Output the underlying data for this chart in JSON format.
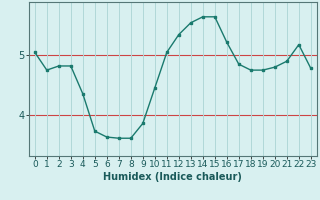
{
  "xlabel": "Humidex (Indice chaleur)",
  "ylabel": "",
  "x": [
    0,
    1,
    2,
    3,
    4,
    5,
    6,
    7,
    8,
    9,
    10,
    11,
    12,
    13,
    14,
    15,
    16,
    17,
    18,
    19,
    20,
    21,
    22,
    23
  ],
  "y": [
    5.05,
    4.75,
    4.82,
    4.82,
    4.35,
    3.72,
    3.62,
    3.6,
    3.6,
    3.85,
    4.45,
    5.05,
    5.35,
    5.55,
    5.65,
    5.65,
    5.22,
    4.85,
    4.75,
    4.75,
    4.8,
    4.9,
    5.18,
    4.78
  ],
  "line_color": "#1a7a6e",
  "marker_color": "#1a7a6e",
  "bg_color": "#d8f0f0",
  "grid_color": "#b0d8d8",
  "hline_color": "#cc4444",
  "ylim": [
    3.3,
    5.9
  ],
  "yticks": [
    4,
    5
  ],
  "xlim": [
    -0.5,
    23.5
  ],
  "title_fontsize": 7,
  "label_fontsize": 7,
  "tick_fontsize": 6.5
}
